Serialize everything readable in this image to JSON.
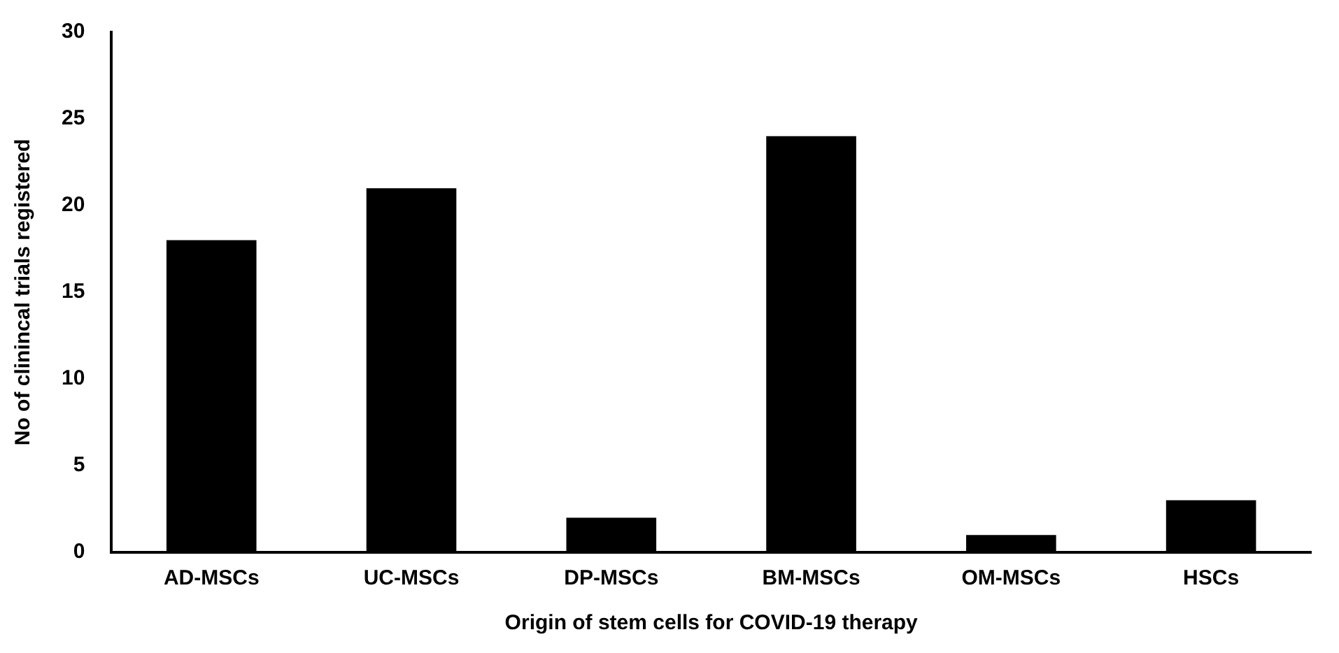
{
  "chart_data": {
    "type": "bar",
    "xlabel": "Origin of stem cells for COVID-19 therapy",
    "ylabel": "No of clinincal trials registered",
    "categories": [
      "AD-MSCs",
      "UC-MSCs",
      "DP-MSCs",
      "BM-MSCs",
      "OM-MSCs",
      "HSCs"
    ],
    "values": [
      18,
      21,
      2,
      24,
      1,
      3
    ],
    "color": "#000000",
    "ylim": [
      0,
      30
    ],
    "yticks": [
      0,
      5,
      10,
      15,
      20,
      25,
      30
    ],
    "grid": false,
    "legend": false
  }
}
